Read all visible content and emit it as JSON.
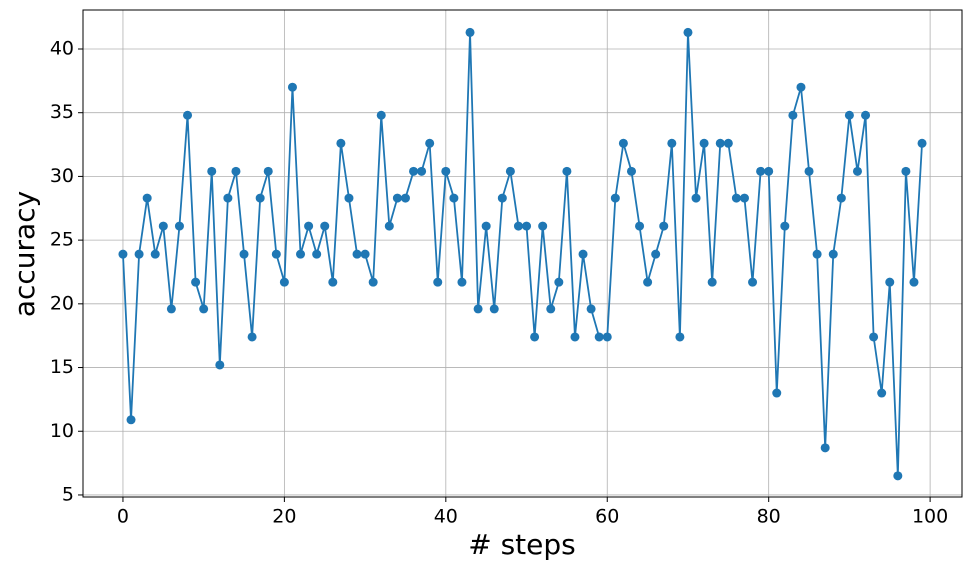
{
  "chart_data": {
    "type": "line",
    "xlabel": "# steps",
    "ylabel": "accuracy",
    "x": [
      0,
      1,
      2,
      3,
      4,
      5,
      6,
      7,
      8,
      9,
      10,
      11,
      12,
      13,
      14,
      15,
      16,
      17,
      18,
      19,
      20,
      21,
      22,
      23,
      24,
      25,
      26,
      27,
      28,
      29,
      30,
      31,
      32,
      33,
      34,
      35,
      36,
      37,
      38,
      39,
      40,
      41,
      42,
      43,
      44,
      45,
      46,
      47,
      48,
      49,
      50,
      51,
      52,
      53,
      54,
      55,
      56,
      57,
      58,
      59,
      60,
      61,
      62,
      63,
      64,
      65,
      66,
      67,
      68,
      69,
      70,
      71,
      72,
      73,
      74,
      75,
      76,
      77,
      78,
      79,
      80,
      81,
      82,
      83,
      84,
      85,
      86,
      87,
      88,
      89,
      90,
      91,
      92,
      93,
      94,
      95,
      96,
      97,
      98,
      99
    ],
    "series": [
      {
        "color": "#1f77b4",
        "values": [
          23.9,
          10.9,
          23.9,
          28.3,
          23.9,
          26.1,
          19.6,
          26.1,
          34.8,
          21.7,
          19.6,
          30.4,
          15.2,
          28.3,
          30.4,
          23.9,
          17.4,
          28.3,
          30.4,
          23.9,
          21.7,
          37.0,
          23.9,
          26.1,
          23.9,
          26.1,
          21.7,
          32.6,
          28.3,
          23.9,
          23.9,
          21.7,
          34.8,
          26.1,
          28.3,
          28.3,
          30.4,
          30.4,
          32.6,
          21.7,
          30.4,
          28.3,
          21.7,
          41.3,
          19.6,
          26.1,
          19.6,
          28.3,
          30.4,
          26.1,
          26.1,
          17.4,
          26.1,
          19.6,
          21.7,
          30.4,
          17.4,
          23.9,
          19.6,
          17.4,
          17.4,
          28.3,
          32.6,
          30.4,
          26.1,
          21.7,
          23.9,
          26.1,
          32.6,
          17.4,
          41.3,
          28.3,
          32.6,
          21.7,
          32.6,
          32.6,
          28.3,
          28.3,
          21.7,
          30.4,
          30.4,
          13.0,
          26.1,
          34.8,
          37.0,
          30.4,
          23.9,
          8.7,
          23.9,
          28.3,
          34.8,
          30.4,
          34.8,
          17.4,
          13.0,
          21.7,
          6.5,
          30.4,
          21.7,
          32.6
        ]
      }
    ],
    "xlim": [
      -4.95,
      103.95
    ],
    "ylim": [
      4.84,
      43.06
    ],
    "xticks": [
      0,
      20,
      40,
      60,
      80,
      100
    ],
    "yticks": [
      5,
      10,
      15,
      20,
      25,
      30,
      35,
      40
    ],
    "grid": true
  }
}
